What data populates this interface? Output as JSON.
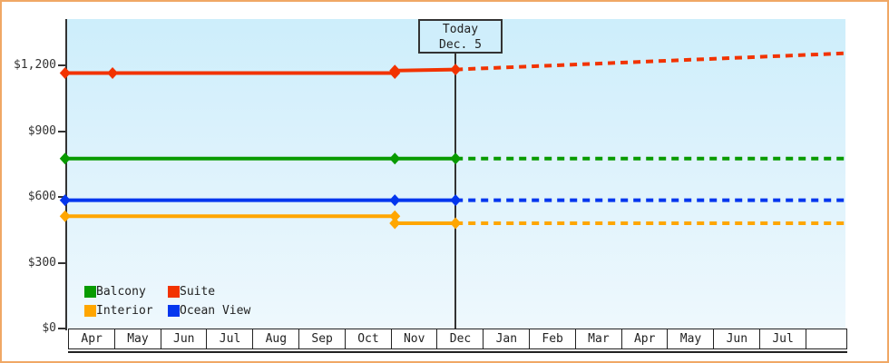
{
  "widget": {
    "frame_border_color": "#f0a865",
    "plot_top_color": "#cdeefb",
    "plot_bottom_color": "#eef8fd",
    "axis_color": "#333333"
  },
  "chart_data": {
    "type": "line",
    "title": "",
    "xlabel": "",
    "ylabel": "",
    "ylim": [
      0,
      1411
    ],
    "grid": false,
    "legend_position": "bottom-left",
    "x_months": [
      "Apr",
      "May",
      "Jun",
      "Jul",
      "Aug",
      "Sep",
      "Oct",
      "Nov",
      "Dec",
      "Jan",
      "Feb",
      "Mar",
      "Apr",
      "May",
      "Jun",
      "Jul"
    ],
    "y_ticks": [
      {
        "label": "$0",
        "value": 0
      },
      {
        "label": "$300",
        "value": 300
      },
      {
        "label": "$600",
        "value": 600
      },
      {
        "label": "$900",
        "value": 900
      },
      {
        "label": "$1,200",
        "value": 1200
      }
    ],
    "today": {
      "label_line1": "Today",
      "label_line2": "Dec. 5",
      "month_offset": 8.13
    },
    "series": [
      {
        "name": "Suite",
        "color": "#f23300",
        "solid": [
          [
            -0.1,
            1165
          ],
          [
            0.9,
            1165
          ],
          [
            6.85,
            1165
          ],
          [
            6.85,
            1176
          ],
          [
            8.13,
            1181
          ]
        ],
        "markers": [
          [
            -0.1,
            1165
          ],
          [
            0.9,
            1165
          ],
          [
            6.85,
            1165
          ],
          [
            6.85,
            1176
          ],
          [
            8.13,
            1181
          ]
        ],
        "dashed": [
          [
            8.13,
            1181
          ],
          [
            16.35,
            1255
          ]
        ]
      },
      {
        "name": "Balcony",
        "color": "#089b00",
        "solid": [
          [
            -0.1,
            775
          ],
          [
            6.85,
            775
          ],
          [
            8.13,
            775
          ]
        ],
        "markers": [
          [
            -0.1,
            775
          ],
          [
            6.85,
            775
          ],
          [
            8.13,
            775
          ]
        ],
        "dashed": [
          [
            8.13,
            775
          ],
          [
            16.35,
            775
          ]
        ]
      },
      {
        "name": "Ocean View",
        "color": "#0336ee",
        "solid": [
          [
            -0.1,
            585
          ],
          [
            6.85,
            585
          ],
          [
            8.13,
            585
          ]
        ],
        "markers": [
          [
            -0.1,
            585
          ],
          [
            6.85,
            585
          ],
          [
            8.13,
            585
          ]
        ],
        "dashed": [
          [
            8.13,
            585
          ],
          [
            16.35,
            585
          ]
        ]
      },
      {
        "name": "Interior",
        "color": "#ffa600",
        "solid": [
          [
            -0.1,
            512
          ],
          [
            6.85,
            512
          ],
          [
            6.85,
            480
          ],
          [
            8.13,
            480
          ]
        ],
        "markers": [
          [
            -0.1,
            512
          ],
          [
            6.85,
            512
          ],
          [
            6.85,
            480
          ],
          [
            8.13,
            480
          ]
        ],
        "dashed": [
          [
            8.13,
            480
          ],
          [
            16.35,
            480
          ]
        ]
      }
    ],
    "legend": [
      {
        "label": "Balcony",
        "color": "#089b00"
      },
      {
        "label": "Suite",
        "color": "#f23300"
      },
      {
        "label": "Interior",
        "color": "#ffa600"
      },
      {
        "label": "Ocean View",
        "color": "#0336ee"
      }
    ]
  }
}
